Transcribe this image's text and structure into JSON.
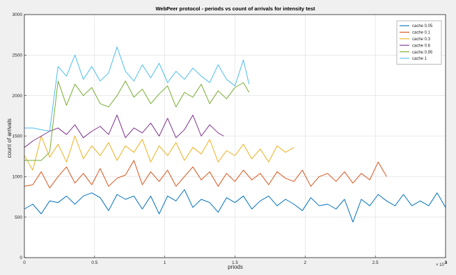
{
  "chart_data": {
    "type": "line",
    "title": "WebPeer protocol - periods vs count of arrivals for intensity test",
    "xlabel": "priods",
    "ylabel": "count of arrivals",
    "xlim": [
      0,
      300000000
    ],
    "ylim": [
      0,
      3000
    ],
    "x_ticks": [
      0,
      0.5,
      1,
      1.5,
      2,
      2.5,
      3
    ],
    "x_tick_labels": [
      "0",
      "0.5",
      "1",
      "1.5",
      "2",
      "2.5",
      "3"
    ],
    "x_exponent_base": "× 10",
    "x_exponent_power": "8",
    "y_ticks": [
      0,
      500,
      1000,
      1500,
      2000,
      2500,
      3000
    ],
    "y_tick_labels": [
      "0",
      "500",
      "1000",
      "1500",
      "2000",
      "2500",
      "3000"
    ],
    "grid": true,
    "legend_position": "top-right",
    "series": [
      {
        "name": "cache 0.05",
        "color": "#0072BD",
        "x": [
          0,
          6000000,
          12000000,
          18000000,
          24000000,
          30000000,
          36000000,
          42000000,
          48000000,
          54000000,
          60000000,
          66000000,
          72000000,
          78000000,
          84000000,
          90000000,
          96000000,
          102000000,
          108000000,
          114000000,
          120000000,
          126000000,
          132000000,
          138000000,
          144000000,
          150000000,
          156000000,
          162000000,
          168000000,
          174000000,
          180000000,
          186000000,
          192000000,
          198000000,
          204000000,
          210000000,
          216000000,
          222000000,
          228000000,
          234000000,
          240000000,
          246000000,
          252000000,
          258000000,
          264000000,
          270000000,
          276000000,
          282000000,
          288000000,
          294000000,
          300000000
        ],
        "y": [
          600,
          660,
          540,
          700,
          680,
          760,
          660,
          760,
          800,
          740,
          580,
          780,
          720,
          760,
          600,
          760,
          540,
          760,
          700,
          840,
          620,
          720,
          680,
          560,
          740,
          680,
          760,
          600,
          700,
          760,
          640,
          720,
          660,
          580,
          740,
          640,
          660,
          600,
          720,
          440,
          720,
          640,
          780,
          700,
          640,
          780,
          640,
          700,
          640,
          800,
          620
        ]
      },
      {
        "name": "cache 0.1",
        "color": "#D95319",
        "x": [
          0,
          6000000,
          12000000,
          18000000,
          24000000,
          30000000,
          36000000,
          42000000,
          48000000,
          54000000,
          60000000,
          66000000,
          72000000,
          78000000,
          84000000,
          90000000,
          96000000,
          102000000,
          108000000,
          114000000,
          120000000,
          126000000,
          132000000,
          138000000,
          144000000,
          150000000,
          156000000,
          162000000,
          168000000,
          174000000,
          180000000,
          186000000,
          192000000,
          198000000,
          204000000,
          210000000,
          216000000,
          222000000,
          228000000,
          234000000,
          240000000,
          246000000,
          252000000,
          258000000
        ],
        "y": [
          880,
          900,
          1060,
          860,
          1000,
          1120,
          920,
          1040,
          900,
          1100,
          880,
          980,
          1020,
          1200,
          900,
          1060,
          940,
          1080,
          880,
          1000,
          1120,
          960,
          1060,
          880,
          1040,
          940,
          1080,
          960,
          1040,
          900,
          1060,
          980,
          940,
          1080,
          880,
          1000,
          1040,
          940,
          1060,
          920,
          1040,
          960,
          1180,
          1000
        ]
      },
      {
        "name": "cache 0.3",
        "color": "#EDB120",
        "x": [
          0,
          6000000,
          12000000,
          18000000,
          24000000,
          30000000,
          36000000,
          42000000,
          48000000,
          54000000,
          60000000,
          66000000,
          72000000,
          78000000,
          84000000,
          90000000,
          96000000,
          102000000,
          108000000,
          114000000,
          120000000,
          126000000,
          132000000,
          138000000,
          144000000,
          150000000,
          156000000,
          162000000,
          168000000,
          174000000,
          180000000,
          186000000,
          192000000
        ],
        "y": [
          1260,
          1080,
          1500,
          1240,
          1400,
          1180,
          1500,
          1220,
          1380,
          1260,
          1420,
          1200,
          1380,
          1300,
          1460,
          1180,
          1380,
          1260,
          1420,
          1200,
          1360,
          1280,
          1460,
          1180,
          1320,
          1260,
          1400,
          1220,
          1340,
          1180,
          1380,
          1300,
          1360
        ]
      },
      {
        "name": "cache 0.6",
        "color": "#7E2F8E",
        "x": [
          0,
          6000000,
          12000000,
          18000000,
          24000000,
          30000000,
          36000000,
          42000000,
          48000000,
          54000000,
          60000000,
          66000000,
          72000000,
          78000000,
          84000000,
          90000000,
          96000000,
          102000000,
          108000000,
          114000000,
          120000000,
          126000000,
          132000000,
          138000000,
          142000000
        ],
        "y": [
          1360,
          1440,
          1500,
          1560,
          1600,
          1520,
          1640,
          1480,
          1560,
          1620,
          1520,
          1760,
          1480,
          1600,
          1540,
          1660,
          1500,
          1720,
          1480,
          1580,
          1760,
          1500,
          1640,
          1540,
          1500
        ]
      },
      {
        "name": "cache 0.95",
        "color": "#77AC30",
        "x": [
          0,
          6000000,
          12000000,
          18000000,
          24000000,
          30000000,
          36000000,
          42000000,
          48000000,
          54000000,
          60000000,
          66000000,
          72000000,
          78000000,
          84000000,
          90000000,
          96000000,
          102000000,
          108000000,
          114000000,
          120000000,
          126000000,
          132000000,
          138000000,
          144000000,
          150000000,
          156000000,
          160000000
        ],
        "y": [
          1200,
          1200,
          1200,
          1300,
          2180,
          1880,
          2140,
          2000,
          2100,
          1900,
          1860,
          2000,
          2180,
          1980,
          2080,
          1900,
          2020,
          2120,
          1860,
          2040,
          1980,
          2140,
          1900,
          2060,
          1960,
          2100,
          2160,
          2040
        ]
      },
      {
        "name": "cache 1",
        "color": "#4DBEEE",
        "x": [
          0,
          6000000,
          12000000,
          18000000,
          24000000,
          30000000,
          36000000,
          42000000,
          48000000,
          54000000,
          60000000,
          66000000,
          72000000,
          78000000,
          84000000,
          90000000,
          96000000,
          102000000,
          108000000,
          114000000,
          120000000,
          126000000,
          132000000,
          138000000,
          144000000,
          150000000,
          156000000,
          160000000
        ],
        "y": [
          1600,
          1600,
          1580,
          1560,
          2360,
          2240,
          2500,
          2200,
          2360,
          2180,
          2280,
          2600,
          2300,
          2180,
          2380,
          2220,
          2400,
          2160,
          2300,
          2200,
          2340,
          2240,
          2160,
          2380,
          2200,
          2120,
          2440,
          2140
        ]
      }
    ]
  }
}
